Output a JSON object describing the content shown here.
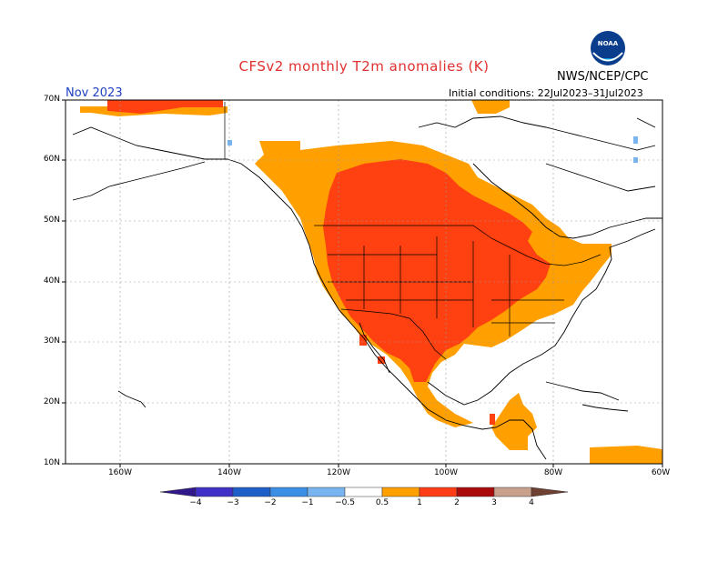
{
  "title": "CFSv2 monthly T2m anomalies (K)",
  "agency": "NWS/NCEP/CPC",
  "logo_text": "NOAA",
  "month_label": "Nov 2023",
  "initial_conditions": "Initial conditions: 22Jul2023–31Jul2023",
  "lat_labels": [
    "70N",
    "60N",
    "50N",
    "40N",
    "30N",
    "20N",
    "10N"
  ],
  "lon_labels": [
    "160W",
    "140W",
    "120W",
    "100W",
    "80W",
    "60W"
  ],
  "colorbar": {
    "labels": [
      "−4",
      "−3",
      "−2",
      "−1",
      "−0.5",
      "0.5",
      "1",
      "2",
      "3",
      "4"
    ],
    "colors": {
      "below_-4": "#30188a",
      "-4_-3": "#4030c8",
      "-3_-2": "#1e5ec8",
      "-2_-1": "#3a8ee6",
      "-1_-0.5": "#78b4f0",
      "-0.5_0.5": "#ffffff",
      "0.5_1": "#ff9f00",
      "1_2": "#ff3c14",
      "2_3": "#aa0a0a",
      "3_4": "#c8a08c",
      "above_4": "#6e4032"
    }
  },
  "map_colors": {
    "ocean": "#ffffff",
    "orange": "#ff9f00",
    "red": "#ff4010",
    "light_blue": "#78b4f0"
  }
}
